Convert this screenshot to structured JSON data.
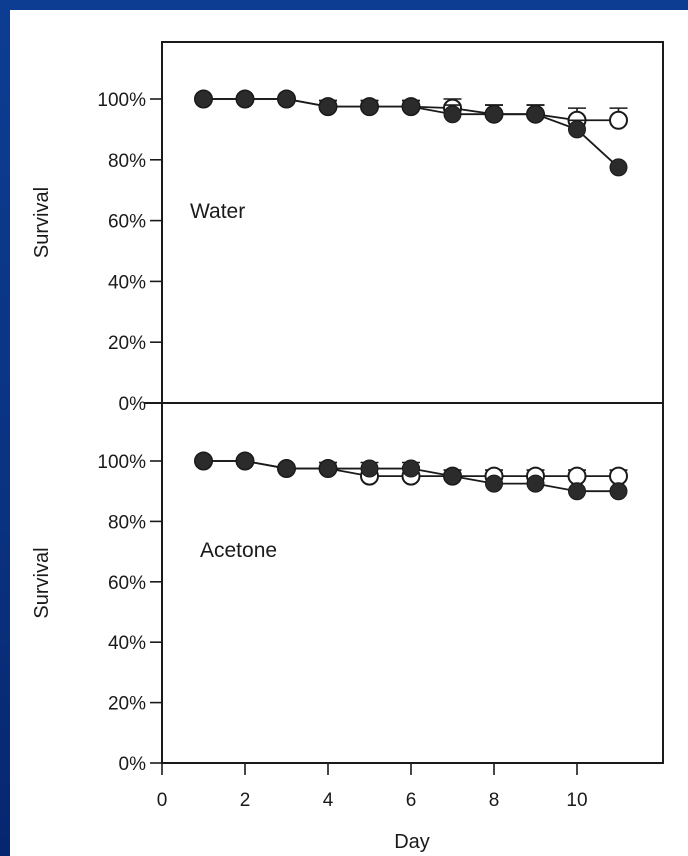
{
  "colors": {
    "background": "#0c3a8c",
    "plot_area": "#ffffff",
    "ink": "#1a1a1a",
    "filled_marker": "#2b2b2b"
  },
  "chart_data": [
    {
      "type": "line",
      "panel_label": "Water",
      "ylabel": "Survival",
      "xlabel": "",
      "ylim": [
        0,
        100
      ],
      "yticks": [
        "0%",
        "20%",
        "40%",
        "60%",
        "80%",
        "100%"
      ],
      "x": [
        1,
        2,
        3,
        4,
        5,
        6,
        7,
        8,
        9,
        10,
        11
      ],
      "series": [
        {
          "marker": "open",
          "values": [
            100,
            100,
            100,
            97.5,
            97.5,
            97.5,
            97,
            95,
            95,
            93,
            93
          ],
          "errors": [
            0,
            0,
            0,
            2,
            2,
            2,
            3,
            3,
            3,
            4,
            4
          ]
        },
        {
          "marker": "filled",
          "values": [
            100,
            100,
            100,
            97.5,
            97.5,
            97.5,
            95,
            95,
            95,
            90,
            77.5
          ],
          "errors": [
            0,
            0,
            0,
            2,
            2,
            2,
            3,
            3,
            3,
            3,
            0
          ]
        }
      ]
    },
    {
      "type": "line",
      "panel_label": "Acetone",
      "ylabel": "Survival",
      "xlabel": "Day",
      "xlim": [
        0,
        12
      ],
      "xticks": [
        "0",
        "2",
        "4",
        "6",
        "8",
        "10"
      ],
      "ylim": [
        0,
        100
      ],
      "yticks": [
        "0%",
        "20%",
        "40%",
        "60%",
        "80%",
        "100%"
      ],
      "x": [
        1,
        2,
        3,
        4,
        5,
        6,
        7,
        8,
        9,
        10,
        11
      ],
      "series": [
        {
          "marker": "open",
          "values": [
            100,
            100,
            97.5,
            97.5,
            95,
            95,
            95,
            95,
            95,
            95,
            95
          ],
          "errors": [
            0,
            0,
            0,
            2,
            2.5,
            3,
            2,
            2,
            2,
            2,
            2
          ]
        },
        {
          "marker": "filled",
          "values": [
            100,
            100,
            97.5,
            97.5,
            97.5,
            97.5,
            95,
            92.5,
            92.5,
            90,
            90
          ],
          "errors": [
            0,
            0,
            0,
            2,
            2,
            2,
            0,
            0,
            0,
            0,
            0
          ]
        }
      ]
    }
  ]
}
